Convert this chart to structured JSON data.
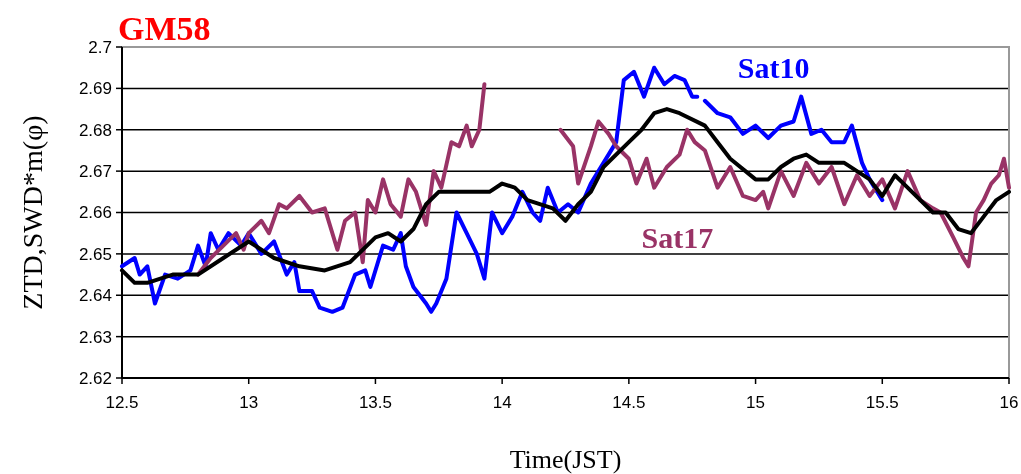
{
  "chart_data": {
    "type": "line",
    "title": "GM58",
    "xlabel": "Time(JST)",
    "ylabel": "ZTD,SWD*m(φ)",
    "xlim": [
      12.5,
      16
    ],
    "xticks": [
      12.5,
      13,
      13.5,
      14,
      14.5,
      15,
      15.5,
      16
    ],
    "ylim": [
      2.62,
      2.7
    ],
    "yticks": [
      2.62,
      2.63,
      2.64,
      2.65,
      2.66,
      2.67,
      2.68,
      2.69,
      2.7
    ],
    "grid": "y",
    "marker": "none",
    "line_style": "solid",
    "series": [
      {
        "name": "Sat10",
        "color": "#0000ff",
        "x": [
          12.5,
          12.55,
          12.57,
          12.6,
          12.63,
          12.67,
          12.72,
          12.77,
          12.8,
          12.83,
          12.85,
          12.88,
          12.92,
          12.97,
          13.0,
          13.05,
          13.1,
          13.15,
          13.18,
          13.2,
          13.25,
          13.28,
          13.33,
          13.37,
          13.42,
          13.46,
          13.48,
          13.53,
          13.57,
          13.6,
          13.62,
          13.65,
          13.7,
          13.72,
          13.74,
          13.78,
          13.82,
          13.86,
          13.9,
          13.93,
          13.96,
          14.0,
          14.04,
          14.08,
          14.12,
          14.15,
          14.18,
          14.22,
          14.26,
          14.3,
          14.35,
          14.4,
          14.45,
          14.48,
          14.52,
          14.56,
          14.6,
          14.64,
          14.68,
          14.72,
          14.75,
          14.77,
          14.78,
          14.8,
          14.85,
          14.9,
          14.95,
          15.0,
          15.05,
          15.1,
          15.15,
          15.18,
          15.22,
          15.26,
          15.3,
          15.35,
          15.38,
          15.42,
          15.45,
          15.5
        ],
        "values": [
          2.647,
          2.649,
          2.645,
          2.647,
          2.638,
          2.645,
          2.644,
          2.646,
          2.652,
          2.647,
          2.655,
          2.651,
          2.655,
          2.652,
          2.655,
          2.65,
          2.653,
          2.645,
          2.648,
          2.641,
          2.641,
          2.637,
          2.636,
          2.637,
          2.645,
          2.646,
          2.642,
          2.652,
          2.651,
          2.655,
          2.647,
          2.642,
          2.638,
          2.636,
          2.638,
          2.644,
          2.66,
          2.655,
          2.65,
          2.644,
          2.66,
          2.655,
          2.659,
          2.665,
          2.66,
          2.658,
          2.666,
          2.66,
          2.662,
          2.66,
          2.667,
          2.672,
          2.677,
          2.692,
          2.694,
          2.688,
          2.695,
          2.691,
          2.693,
          2.692,
          2.688,
          2.688,
          null,
          2.687,
          2.684,
          2.683,
          2.679,
          2.681,
          2.678,
          2.681,
          2.682,
          2.688,
          2.679,
          2.68,
          2.677,
          2.677,
          2.681,
          2.672,
          2.668,
          2.663
        ]
      },
      {
        "name": "Sat17",
        "color": "#993366",
        "x": [
          12.8,
          12.85,
          12.9,
          12.95,
          12.98,
          13.0,
          13.05,
          13.08,
          13.12,
          13.15,
          13.2,
          13.25,
          13.3,
          13.35,
          13.38,
          13.42,
          13.45,
          13.47,
          13.5,
          13.53,
          13.56,
          13.6,
          13.63,
          13.66,
          13.7,
          13.73,
          13.76,
          13.8,
          13.83,
          13.86,
          13.88,
          13.91,
          13.93,
          14.1,
          14.23,
          14.28,
          14.3,
          14.35,
          14.38,
          14.42,
          14.45,
          14.5,
          14.53,
          14.57,
          14.6,
          14.65,
          14.7,
          14.73,
          14.76,
          14.8,
          14.85,
          14.9,
          14.95,
          15.0,
          15.03,
          15.05,
          15.1,
          15.15,
          15.2,
          15.25,
          15.3,
          15.35,
          15.4,
          15.45,
          15.5,
          15.55,
          15.6,
          15.65,
          15.7,
          15.73,
          15.78,
          15.82,
          15.84,
          15.87,
          15.9,
          15.93,
          15.96,
          15.98,
          16.0
        ],
        "values": [
          2.645,
          2.649,
          2.652,
          2.655,
          2.651,
          2.655,
          2.658,
          2.655,
          2.662,
          2.661,
          2.664,
          2.66,
          2.661,
          2.651,
          2.658,
          2.66,
          2.648,
          2.663,
          2.66,
          2.668,
          2.662,
          2.659,
          2.668,
          2.665,
          2.657,
          2.67,
          2.666,
          2.677,
          2.676,
          2.681,
          2.676,
          2.68,
          2.691,
          null,
          2.68,
          2.676,
          2.667,
          2.676,
          2.682,
          2.679,
          2.676,
          2.673,
          2.667,
          2.673,
          2.666,
          2.671,
          2.674,
          2.68,
          2.677,
          2.675,
          2.666,
          2.671,
          2.664,
          2.663,
          2.665,
          2.661,
          2.67,
          2.664,
          2.672,
          2.667,
          2.671,
          2.662,
          2.669,
          2.664,
          2.668,
          2.661,
          2.67,
          2.663,
          2.661,
          2.66,
          2.654,
          2.649,
          2.647,
          2.66,
          2.663,
          2.667,
          2.669,
          2.673,
          2.666
        ]
      },
      {
        "color": "#000000",
        "x": [
          12.5,
          12.55,
          12.6,
          12.7,
          12.8,
          12.9,
          13.0,
          13.05,
          13.1,
          13.2,
          13.3,
          13.4,
          13.5,
          13.55,
          13.6,
          13.65,
          13.7,
          13.75,
          13.8,
          13.9,
          13.95,
          14.0,
          14.05,
          14.1,
          14.2,
          14.25,
          14.3,
          14.35,
          14.4,
          14.5,
          14.55,
          14.6,
          14.65,
          14.7,
          14.8,
          14.85,
          14.9,
          15.0,
          15.05,
          15.1,
          15.15,
          15.2,
          15.25,
          15.35,
          15.45,
          15.5,
          15.55,
          15.6,
          15.7,
          15.75,
          15.8,
          15.85,
          15.9,
          15.95,
          16.0
        ],
        "values": [
          2.646,
          2.643,
          2.643,
          2.645,
          2.645,
          2.649,
          2.653,
          2.651,
          2.649,
          2.647,
          2.646,
          2.648,
          2.654,
          2.655,
          2.653,
          2.656,
          2.662,
          2.665,
          2.665,
          2.665,
          2.665,
          2.667,
          2.666,
          2.663,
          2.661,
          2.658,
          2.662,
          2.665,
          2.671,
          2.677,
          2.68,
          2.684,
          2.685,
          2.684,
          2.681,
          2.677,
          2.673,
          2.668,
          2.668,
          2.671,
          2.673,
          2.674,
          2.672,
          2.672,
          2.668,
          2.664,
          2.669,
          2.666,
          2.66,
          2.66,
          2.656,
          2.655,
          2.659,
          2.663,
          2.665
        ]
      }
    ]
  }
}
